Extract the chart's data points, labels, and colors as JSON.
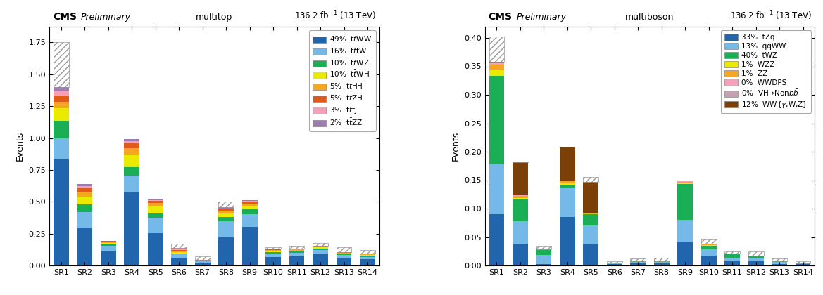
{
  "left": {
    "title_cms": "CMS",
    "title_prelim": "Preliminary",
    "title_process": "multitop",
    "title_lumi": "136.2 fb$^{-1}$ (13 TeV)",
    "ylabel": "Events",
    "ylim": [
      0,
      1.875
    ],
    "yticks": [
      0.0,
      0.25,
      0.5,
      0.75,
      1.0,
      1.25,
      1.5,
      1.75
    ],
    "categories": [
      "SR1",
      "SR2",
      "SR3",
      "SR4",
      "SR5",
      "SR6",
      "SR7",
      "SR8",
      "SR9",
      "SR10",
      "SR11",
      "SR12",
      "SR13",
      "SR14"
    ],
    "series": [
      {
        "label": "t$\\bar{t}$WW",
        "pct": "49%",
        "color": "#2166ac",
        "values": [
          0.83,
          0.295,
          0.115,
          0.575,
          0.255,
          0.058,
          0.022,
          0.22,
          0.305,
          0.068,
          0.07,
          0.092,
          0.06,
          0.05
        ]
      },
      {
        "label": "t$\\bar{t}$tW",
        "pct": "16%",
        "color": "#74b9e7",
        "values": [
          0.17,
          0.125,
          0.038,
          0.13,
          0.118,
          0.028,
          0.01,
          0.125,
          0.098,
          0.028,
          0.028,
          0.03,
          0.02,
          0.018
        ]
      },
      {
        "label": "t$\\bar{t}$WZ",
        "pct": "10%",
        "color": "#1aaf54",
        "values": [
          0.138,
          0.06,
          0.012,
          0.068,
          0.038,
          0.01,
          0.003,
          0.038,
          0.038,
          0.01,
          0.01,
          0.01,
          0.008,
          0.008
        ]
      },
      {
        "label": "t$\\bar{t}$WH",
        "pct": "10%",
        "color": "#eaea00",
        "values": [
          0.098,
          0.058,
          0.01,
          0.098,
          0.058,
          0.01,
          0.003,
          0.028,
          0.028,
          0.01,
          0.01,
          0.01,
          0.008,
          0.008
        ]
      },
      {
        "label": "t$\\bar{t}$HH",
        "pct": "5%",
        "color": "#f5a623",
        "values": [
          0.048,
          0.038,
          0.008,
          0.048,
          0.02,
          0.008,
          0.002,
          0.018,
          0.018,
          0.008,
          0.008,
          0.008,
          0.004,
          0.004
        ]
      },
      {
        "label": "t$\\bar{t}$ZH",
        "pct": "5%",
        "color": "#e05a1a",
        "values": [
          0.048,
          0.028,
          0.008,
          0.038,
          0.018,
          0.008,
          0.002,
          0.01,
          0.01,
          0.003,
          0.003,
          0.003,
          0.002,
          0.002
        ]
      },
      {
        "label": "t$\\bar{t}$tJ",
        "pct": "3%",
        "color": "#f4a0b8",
        "values": [
          0.038,
          0.018,
          0.002,
          0.018,
          0.008,
          0.008,
          0.001,
          0.008,
          0.008,
          0.002,
          0.002,
          0.002,
          0.001,
          0.001
        ]
      },
      {
        "label": "t$\\bar{t}$ZZ",
        "pct": "2%",
        "color": "#9e7baf",
        "values": [
          0.028,
          0.018,
          0.002,
          0.018,
          0.008,
          0.008,
          0.001,
          0.008,
          0.008,
          0.002,
          0.002,
          0.002,
          0.001,
          0.001
        ]
      }
    ],
    "uncertainty": [
      1.75,
      0.615,
      0.195,
      0.975,
      0.52,
      0.17,
      0.072,
      0.5,
      0.5,
      0.142,
      0.155,
      0.175,
      0.142,
      0.122
    ]
  },
  "right": {
    "title_cms": "CMS",
    "title_prelim": "Preliminary",
    "title_process": "multiboson",
    "title_lumi": "136.2 fb$^{-1}$ (13 TeV)",
    "ylabel": "Events",
    "ylim": [
      0,
      0.42
    ],
    "yticks": [
      0.0,
      0.05,
      0.1,
      0.15,
      0.2,
      0.25,
      0.3,
      0.35,
      0.4
    ],
    "categories": [
      "SR1",
      "SR2",
      "SR3",
      "SR4",
      "SR5",
      "SR6",
      "SR7",
      "SR8",
      "SR9",
      "SR10",
      "SR11",
      "SR12",
      "SR13",
      "SR14"
    ],
    "series": [
      {
        "label": "tZq",
        "pct": "33%",
        "color": "#2166ac",
        "values": [
          0.09,
          0.038,
          0.003,
          0.085,
          0.037,
          0.002,
          0.004,
          0.004,
          0.042,
          0.017,
          0.007,
          0.007,
          0.003,
          0.002
        ]
      },
      {
        "label": "qqWW",
        "pct": "13%",
        "color": "#74b9e7",
        "values": [
          0.088,
          0.04,
          0.015,
          0.052,
          0.033,
          0.002,
          0.002,
          0.002,
          0.038,
          0.011,
          0.007,
          0.006,
          0.003,
          0.001
        ]
      },
      {
        "label": "tWZ",
        "pct": "40%",
        "color": "#1aaf54",
        "values": [
          0.155,
          0.038,
          0.01,
          0.005,
          0.02,
          0.001,
          0.001,
          0.001,
          0.063,
          0.007,
          0.007,
          0.004,
          0.002,
          0.001
        ]
      },
      {
        "label": "WZZ",
        "pct": "1%",
        "color": "#eaea00",
        "values": [
          0.01,
          0.003,
          0.0,
          0.003,
          0.001,
          0.0,
          0.0,
          0.0,
          0.002,
          0.001,
          0.0,
          0.0,
          0.0,
          0.0
        ]
      },
      {
        "label": "ZZ",
        "pct": "1%",
        "color": "#f5a623",
        "values": [
          0.01,
          0.003,
          0.0,
          0.003,
          0.001,
          0.0,
          0.0,
          0.0,
          0.002,
          0.001,
          0.0,
          0.0,
          0.0,
          0.0
        ]
      },
      {
        "label": "WWDPS",
        "pct": "0%",
        "color": "#f4a0b8",
        "values": [
          0.002,
          0.001,
          0.0,
          0.001,
          0.0,
          0.0,
          0.0,
          0.0,
          0.001,
          0.0,
          0.0,
          0.0,
          0.0,
          0.0
        ]
      },
      {
        "label": "VH→Non$b\\bar{b}$",
        "pct": "0%",
        "color": "#c4a0b5",
        "values": [
          0.002,
          0.001,
          0.0,
          0.001,
          0.0,
          0.0,
          0.0,
          0.0,
          0.001,
          0.0,
          0.0,
          0.0,
          0.0,
          0.0
        ]
      },
      {
        "label": "WW{$\\gamma$,W,Z}",
        "pct": "12%",
        "color": "#7b3f08",
        "values": [
          0.001,
          0.058,
          0.001,
          0.057,
          0.055,
          0.0,
          0.0,
          0.0,
          0.001,
          0.001,
          0.0,
          0.0,
          0.0,
          0.0
        ]
      }
    ],
    "uncertainty": [
      0.403,
      0.183,
      0.035,
      0.165,
      0.155,
      0.008,
      0.012,
      0.013,
      0.133,
      0.047,
      0.025,
      0.025,
      0.012,
      0.008
    ]
  }
}
